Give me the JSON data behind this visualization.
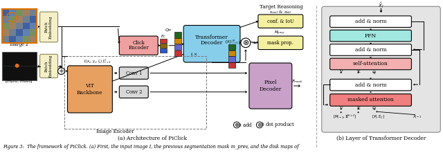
{
  "title": "Figure 3: The framework of PiClick.",
  "fig_width": 6.4,
  "fig_height": 2.21,
  "bg_color": "#ffffff",
  "subfig_a_title": "(a) Architecture of PiClick",
  "subfig_b_title": "(b) Layer of Transformer Decoder",
  "caption": "Figure 3:  The framework of PiClick. (a) First, the input image I, the previous segmentation mask m_prev, and the disk maps of",
  "colors": {
    "patch_embed_yellow": "#f5f0c8",
    "transformer_blue": "#87ceeb",
    "click_encoder_pink": "#f0a0a0",
    "pixel_decoder_plum": "#c8a0c8",
    "vit_orange": "#e8a060",
    "conv_gray": "#d8d8d8",
    "conf_iou_yellow": "#f5f0a0",
    "mask_prop_yellow": "#f5f0a0",
    "add_norm_white": "#ffffff",
    "ffn_cyan": "#a0e8e0",
    "self_attn_pink": "#f4b0b0",
    "masked_attn_red": "#f08080",
    "gray_bg": "#e0e0e0",
    "orange_border": "#e07000"
  }
}
